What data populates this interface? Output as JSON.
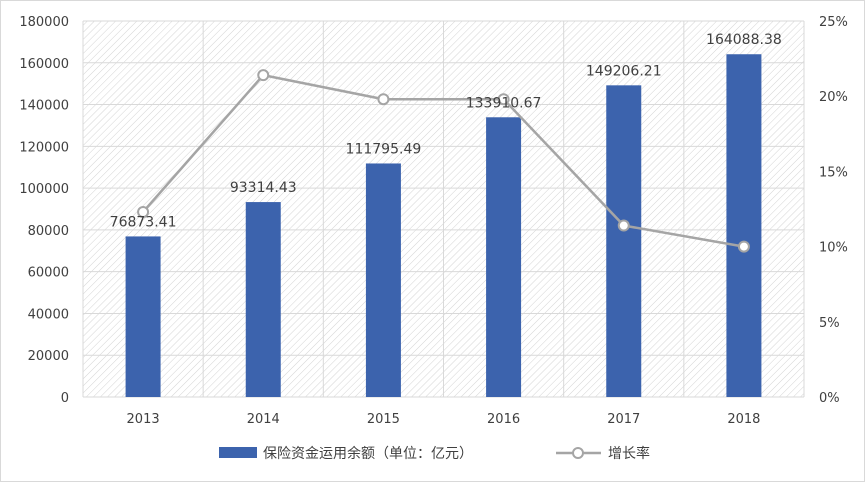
{
  "chart_data": {
    "type": "bar",
    "categories": [
      "2013",
      "2014",
      "2015",
      "2016",
      "2017",
      "2018"
    ],
    "series": [
      {
        "name": "保险资金运用余额（单位：亿元）",
        "type": "bar",
        "axis": "left",
        "values": [
          76873.41,
          93314.43,
          111795.49,
          133910.67,
          149206.21,
          164088.38
        ],
        "labels": [
          "76873.41",
          "93314.43",
          "111795.49",
          "133910.67",
          "149206.21",
          "164088.38"
        ],
        "color": "#3c63ad"
      },
      {
        "name": "增长率",
        "type": "line",
        "axis": "right",
        "values": [
          0.123,
          0.214,
          0.198,
          0.198,
          0.114,
          0.1
        ],
        "color": "#a5a5a5"
      }
    ],
    "y_left": {
      "lim": [
        0,
        180000
      ],
      "ticks": [
        0,
        20000,
        40000,
        60000,
        80000,
        100000,
        120000,
        140000,
        160000,
        180000
      ],
      "tick_labels": [
        "0",
        "20000",
        "40000",
        "60000",
        "80000",
        "100000",
        "120000",
        "140000",
        "160000",
        "180000"
      ]
    },
    "y_right": {
      "lim": [
        0,
        0.25
      ],
      "ticks": [
        0,
        0.05,
        0.1,
        0.15,
        0.2,
        0.25
      ],
      "tick_labels": [
        "0%",
        "5%",
        "10%",
        "15%",
        "20%",
        "25%"
      ]
    },
    "grid": true,
    "legend": "bottom"
  }
}
